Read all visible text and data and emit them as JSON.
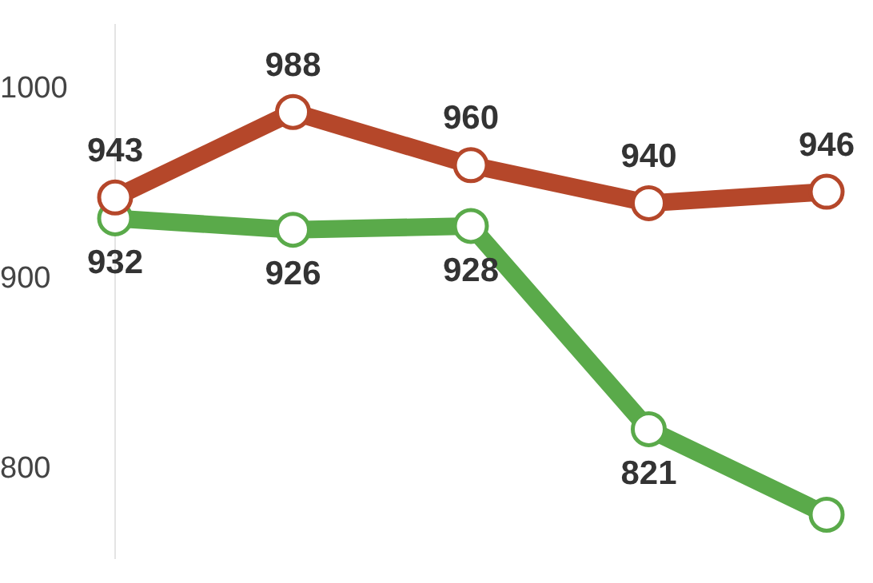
{
  "chart_data": {
    "type": "line",
    "categories": [
      null,
      null,
      null,
      null,
      null
    ],
    "series": [
      {
        "color": "#b5472a",
        "values": [
          943,
          988,
          960,
          940,
          946
        ],
        "value_labels": [
          "943",
          "988",
          "960",
          "940",
          "946"
        ]
      },
      {
        "color": "#5aaa4a",
        "values": [
          932,
          926,
          928,
          821,
          776
        ],
        "value_labels": [
          "932",
          "926",
          "928",
          "821",
          null
        ]
      }
    ],
    "ylim": [
      753,
      1034
    ],
    "yticks": [
      800,
      900,
      1000
    ],
    "grid": false,
    "legend": false,
    "marker": "circle",
    "line_style": "solid",
    "tick_labels": "y"
  }
}
